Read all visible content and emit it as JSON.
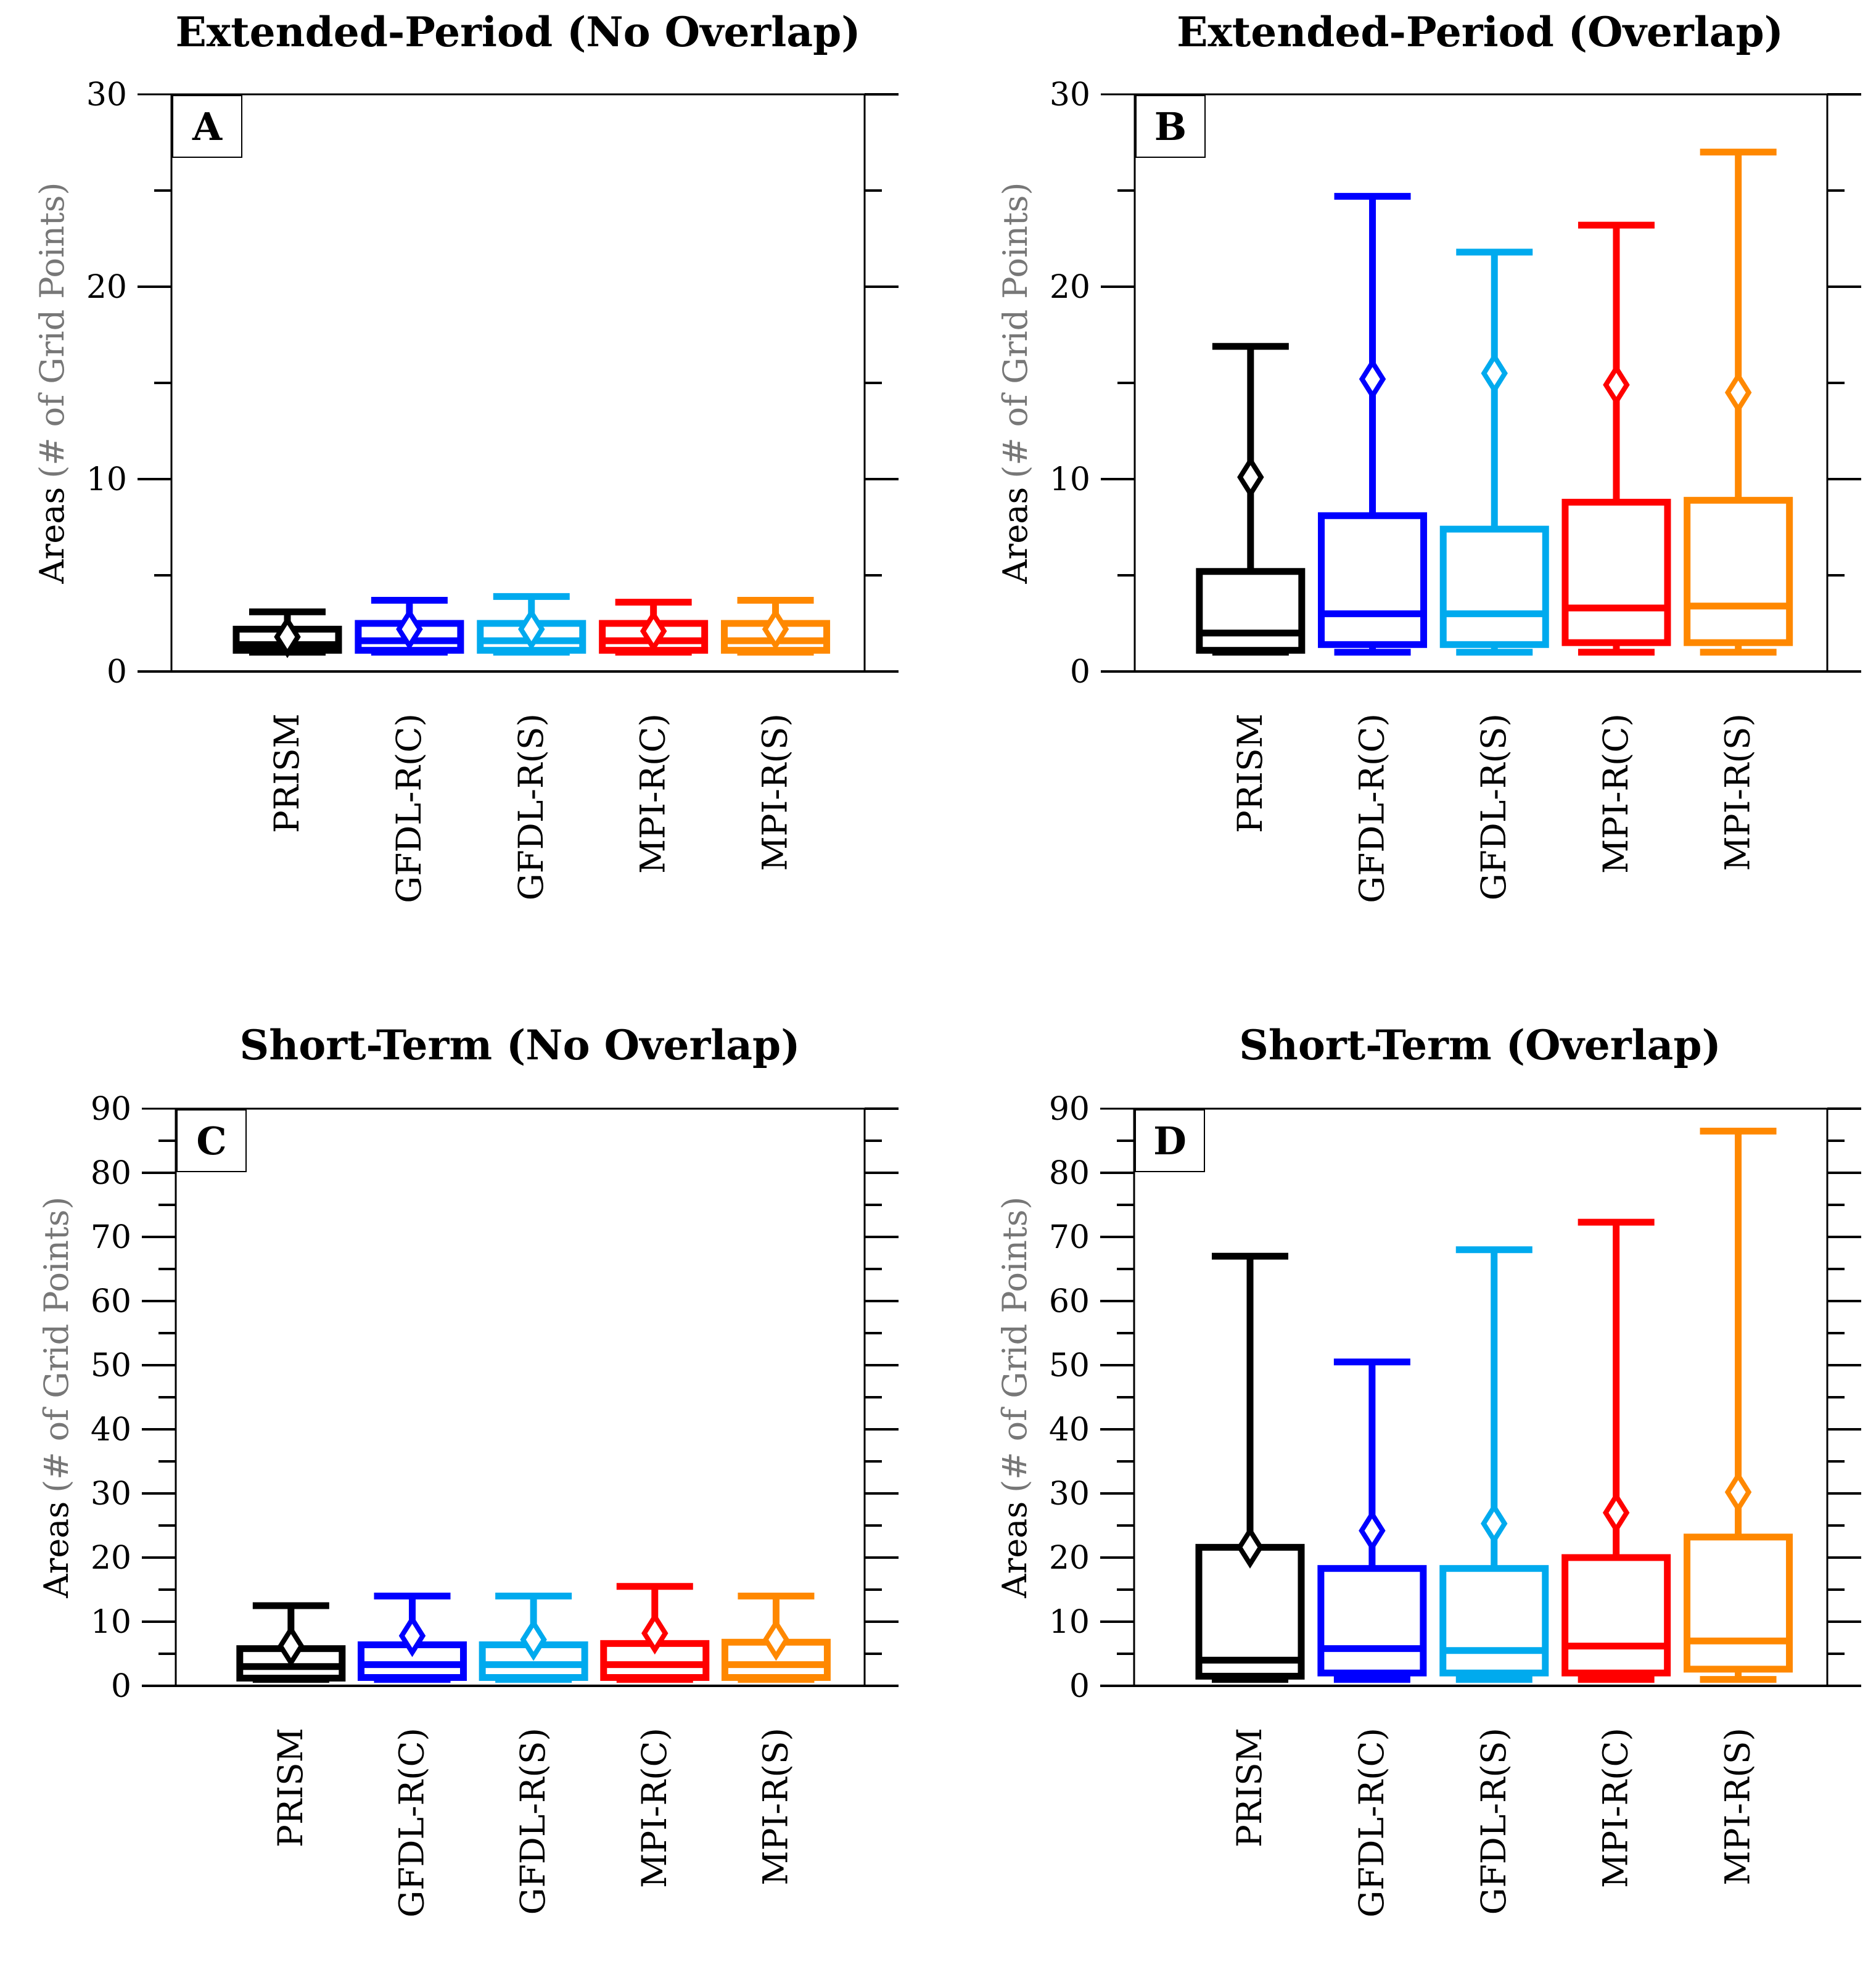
{
  "chart_data": [
    {
      "type": "box",
      "panel": "A",
      "title": "Extended-Period (No Overlap)",
      "ylabel_main": "Areas",
      "ylabel_paren": "(# of Grid Points)",
      "ylim": [
        0,
        30
      ],
      "yticks": [
        0,
        10,
        20,
        30
      ],
      "minor_step": 5,
      "categories": [
        "PRISM",
        "GFDL-R(C)",
        "GFDL-R(S)",
        "MPI-R(C)",
        "MPI-R(S)"
      ],
      "colors": [
        "#000000",
        "#0000ff",
        "#00aaee",
        "#ff0000",
        "#ff8800"
      ],
      "boxes": [
        {
          "min": 1,
          "q1": 1.1,
          "median": 1.4,
          "q3": 2.2,
          "max": 3.1,
          "mean": 1.8
        },
        {
          "min": 1,
          "q1": 1.1,
          "median": 1.6,
          "q3": 2.5,
          "max": 3.7,
          "mean": 2.2
        },
        {
          "min": 1,
          "q1": 1.1,
          "median": 1.6,
          "q3": 2.5,
          "max": 3.9,
          "mean": 2.2
        },
        {
          "min": 1,
          "q1": 1.1,
          "median": 1.6,
          "q3": 2.5,
          "max": 3.6,
          "mean": 2.1
        },
        {
          "min": 1,
          "q1": 1.1,
          "median": 1.6,
          "q3": 2.5,
          "max": 3.7,
          "mean": 2.2
        }
      ]
    },
    {
      "type": "box",
      "panel": "B",
      "title": "Extended-Period (Overlap)",
      "ylabel_main": "Areas",
      "ylabel_paren": "(# of Grid Points)",
      "ylim": [
        0,
        30
      ],
      "yticks": [
        0,
        10,
        20,
        30
      ],
      "minor_step": 5,
      "categories": [
        "PRISM",
        "GFDL-R(C)",
        "GFDL-R(S)",
        "MPI-R(C)",
        "MPI-R(S)"
      ],
      "colors": [
        "#000000",
        "#0000ff",
        "#00aaee",
        "#ff0000",
        "#ff8800"
      ],
      "boxes": [
        {
          "min": 1,
          "q1": 1.1,
          "median": 2.0,
          "q3": 5.2,
          "max": 16.9,
          "mean": 10.1
        },
        {
          "min": 1,
          "q1": 1.4,
          "median": 3.0,
          "q3": 8.1,
          "max": 24.7,
          "mean": 15.2
        },
        {
          "min": 1,
          "q1": 1.4,
          "median": 3.0,
          "q3": 7.4,
          "max": 21.8,
          "mean": 15.5
        },
        {
          "min": 1,
          "q1": 1.5,
          "median": 3.3,
          "q3": 8.8,
          "max": 23.2,
          "mean": 14.9
        },
        {
          "min": 1,
          "q1": 1.5,
          "median": 3.4,
          "q3": 8.9,
          "max": 27.0,
          "mean": 14.5
        }
      ]
    },
    {
      "type": "box",
      "panel": "C",
      "title": "Short-Term (No Overlap)",
      "ylabel_main": "Areas",
      "ylabel_paren": "(# of Grid Points)",
      "ylim": [
        0,
        90
      ],
      "yticks": [
        0,
        10,
        20,
        30,
        40,
        50,
        60,
        70,
        80,
        90
      ],
      "minor_step": 5,
      "categories": [
        "PRISM",
        "GFDL-R(C)",
        "GFDL-R(S)",
        "MPI-R(C)",
        "MPI-R(S)"
      ],
      "colors": [
        "#000000",
        "#0000ff",
        "#00aaee",
        "#ff0000",
        "#ff8800"
      ],
      "boxes": [
        {
          "min": 1,
          "q1": 1.2,
          "median": 3.0,
          "q3": 5.8,
          "max": 12.5,
          "mean": 6.2
        },
        {
          "min": 1,
          "q1": 1.3,
          "median": 3.3,
          "q3": 6.4,
          "max": 14.0,
          "mean": 7.8
        },
        {
          "min": 1,
          "q1": 1.3,
          "median": 3.3,
          "q3": 6.4,
          "max": 14.0,
          "mean": 7.2
        },
        {
          "min": 1,
          "q1": 1.3,
          "median": 3.3,
          "q3": 6.6,
          "max": 15.5,
          "mean": 8.2
        },
        {
          "min": 1,
          "q1": 1.3,
          "median": 3.3,
          "q3": 6.8,
          "max": 14.0,
          "mean": 7.2
        }
      ]
    },
    {
      "type": "box",
      "panel": "D",
      "title": "Short-Term (Overlap)",
      "ylabel_main": "Areas",
      "ylabel_paren": "(# of Grid Points)",
      "ylim": [
        0,
        90
      ],
      "yticks": [
        0,
        10,
        20,
        30,
        40,
        50,
        60,
        70,
        80,
        90
      ],
      "minor_step": 5,
      "categories": [
        "PRISM",
        "GFDL-R(C)",
        "GFDL-R(S)",
        "MPI-R(C)",
        "MPI-R(S)"
      ],
      "colors": [
        "#000000",
        "#0000ff",
        "#00aaee",
        "#ff0000",
        "#ff8800"
      ],
      "boxes": [
        {
          "min": 1,
          "q1": 1.5,
          "median": 4.0,
          "q3": 21.6,
          "max": 67.0,
          "mean": 21.6
        },
        {
          "min": 1,
          "q1": 2.0,
          "median": 5.8,
          "q3": 18.3,
          "max": 50.5,
          "mean": 24.2
        },
        {
          "min": 1,
          "q1": 2.0,
          "median": 5.5,
          "q3": 18.3,
          "max": 68.0,
          "mean": 25.3
        },
        {
          "min": 1,
          "q1": 2.0,
          "median": 6.2,
          "q3": 20.0,
          "max": 72.3,
          "mean": 27.0
        },
        {
          "min": 1,
          "q1": 2.6,
          "median": 7.0,
          "q3": 23.2,
          "max": 86.5,
          "mean": 30.2
        }
      ]
    }
  ]
}
